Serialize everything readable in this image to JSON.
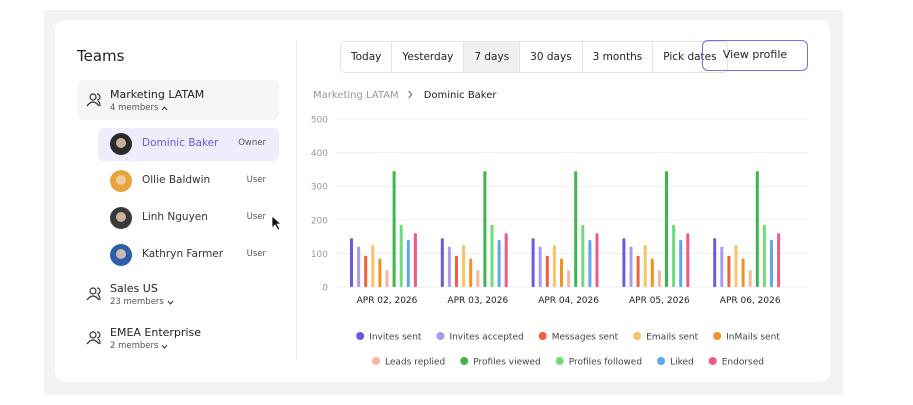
{
  "sidebar": {
    "title": "Teams",
    "teams": [
      {
        "name": "Marketing LATAM",
        "members_label": "4 members",
        "expanded": true,
        "members": [
          {
            "name": "Dominic Baker",
            "role": "Owner",
            "selected": true
          },
          {
            "name": "Ollie Baldwin",
            "role": "User"
          },
          {
            "name": "Linh Nguyen",
            "role": "User"
          },
          {
            "name": "Kathryn Farmer",
            "role": "User"
          }
        ]
      },
      {
        "name": "Sales US",
        "members_label": "23 members"
      },
      {
        "name": "EMEA Enterprise",
        "members_label": "2 members"
      }
    ]
  },
  "tabs": [
    {
      "label": "Today"
    },
    {
      "label": "Yesterday"
    },
    {
      "label": "7 days",
      "selected": true
    },
    {
      "label": "30 days"
    },
    {
      "label": "3 months"
    },
    {
      "label": "Pick dates"
    }
  ],
  "button": "View profile",
  "breadcrumb": [
    "Marketing LATAM",
    "Dominic Baker"
  ],
  "chart_data": {
    "type": "bar",
    "categories": [
      "APR 02, 2026",
      "APR 03, 2026",
      "APR 04, 2026",
      "APR 05, 2026",
      "APR 06, 2026"
    ],
    "ylim": [
      0,
      500
    ],
    "yticks": [
      0,
      100,
      200,
      300,
      400,
      500
    ],
    "grid": true,
    "legend": "bottom",
    "series": [
      {
        "name": "Invites sent",
        "color": "#6a5ae0",
        "values": [
          145,
          145,
          145,
          145,
          145
        ]
      },
      {
        "name": "Invites accepted",
        "color": "#a99cf0",
        "values": [
          120,
          120,
          120,
          120,
          120
        ]
      },
      {
        "name": "Messages sent",
        "color": "#f0603a",
        "values": [
          93,
          93,
          93,
          93,
          93
        ]
      },
      {
        "name": "Emails sent",
        "color": "#f8c46a",
        "values": [
          125,
          125,
          125,
          125,
          125
        ]
      },
      {
        "name": "InMails sent",
        "color": "#f39221",
        "values": [
          85,
          85,
          85,
          85,
          85
        ]
      },
      {
        "name": "Leads replied",
        "color": "#f5b7a1",
        "values": [
          50,
          50,
          50,
          50,
          50
        ]
      },
      {
        "name": "Profiles viewed",
        "color": "#3fb54f",
        "values": [
          345,
          345,
          345,
          345,
          345
        ]
      },
      {
        "name": "Profiles followed",
        "color": "#6fdc7c",
        "values": [
          185,
          185,
          185,
          185,
          185
        ]
      },
      {
        "name": "Liked",
        "color": "#5aa8f0",
        "values": [
          140,
          140,
          140,
          140,
          140
        ]
      },
      {
        "name": "Endorsed",
        "color": "#f0578a",
        "values": [
          160,
          160,
          160,
          160,
          160
        ]
      }
    ]
  }
}
